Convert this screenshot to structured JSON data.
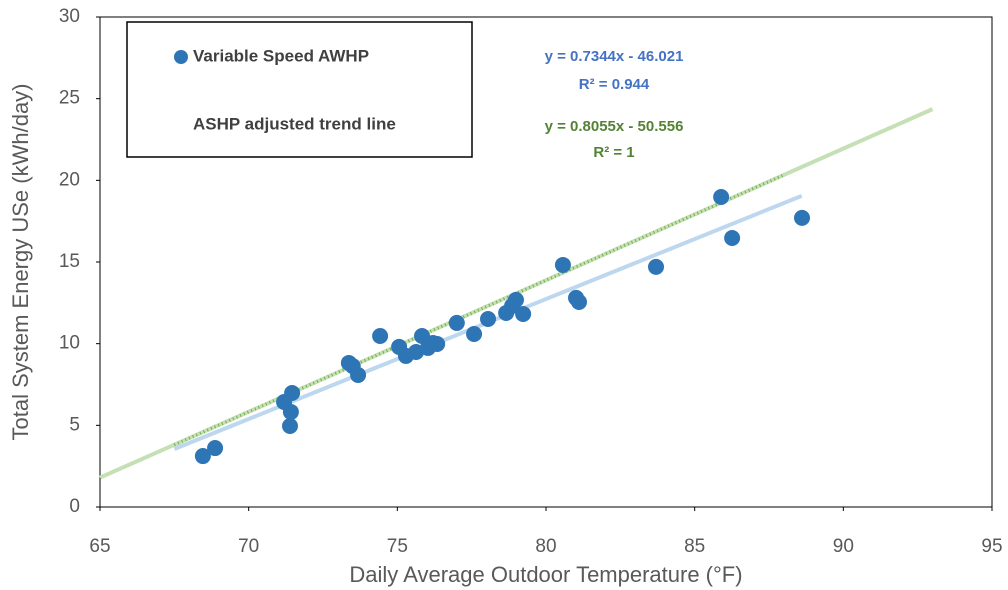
{
  "chart_data": {
    "type": "scatter",
    "x_label": "Daily Average Outdoor Temperature (°F)",
    "y_label": "Total System Energy USe (kWh/day)",
    "xlim": [
      65,
      95
    ],
    "xticks": [
      65,
      70,
      75,
      80,
      85,
      90,
      95
    ],
    "ylim": [
      0,
      30
    ],
    "yticks": [
      0,
      5,
      10,
      15,
      20,
      25,
      30
    ],
    "series": [
      {
        "name": "Variable Speed AWHP",
        "color": "#2e75b6",
        "x": [
          68.46,
          68.87,
          71.19,
          71.46,
          71.42,
          71.39,
          73.37,
          73.5,
          73.68,
          74.42,
          75.06,
          75.29,
          75.63,
          75.83,
          76.03,
          76.2,
          76.34,
          77.0,
          77.58,
          78.05,
          78.66,
          78.86,
          78.99,
          79.23,
          80.57,
          81.01,
          81.11,
          83.7,
          85.89,
          86.26,
          88.61
        ],
        "values": [
          3.12,
          3.61,
          6.43,
          6.98,
          5.82,
          4.96,
          8.82,
          8.63,
          8.08,
          10.47,
          9.8,
          9.25,
          9.49,
          10.47,
          9.74,
          10.04,
          9.98,
          11.27,
          10.59,
          11.51,
          11.88,
          12.31,
          12.68,
          11.82,
          14.82,
          12.8,
          12.55,
          14.7,
          18.98,
          16.47,
          17.7
        ]
      }
    ],
    "lines": [
      {
        "color": "#bdd7ee",
        "style": "solid",
        "x": [
          67.5,
          88.6
        ],
        "values": [
          3.55,
          19.05
        ]
      },
      {
        "name": "ASHP adjusted trend line",
        "color": "#c5e0b4",
        "style": "solid",
        "x": [
          65,
          93
        ],
        "values": [
          1.8,
          24.36
        ]
      },
      {
        "color": "#70ad47",
        "style": "dotted",
        "x": [
          67.5,
          88
        ],
        "values": [
          3.81,
          20.33
        ]
      }
    ],
    "annotations": [
      {
        "text": "y = 0.7344x - 46.021",
        "color": "#4472c4"
      },
      {
        "text": "R² = 0.944",
        "color": "#4472c4"
      },
      {
        "text": "y = 0.8055x - 50.556",
        "color": "#548235"
      },
      {
        "text": "R² = 1",
        "color": "#548235"
      }
    ],
    "grid": false
  }
}
